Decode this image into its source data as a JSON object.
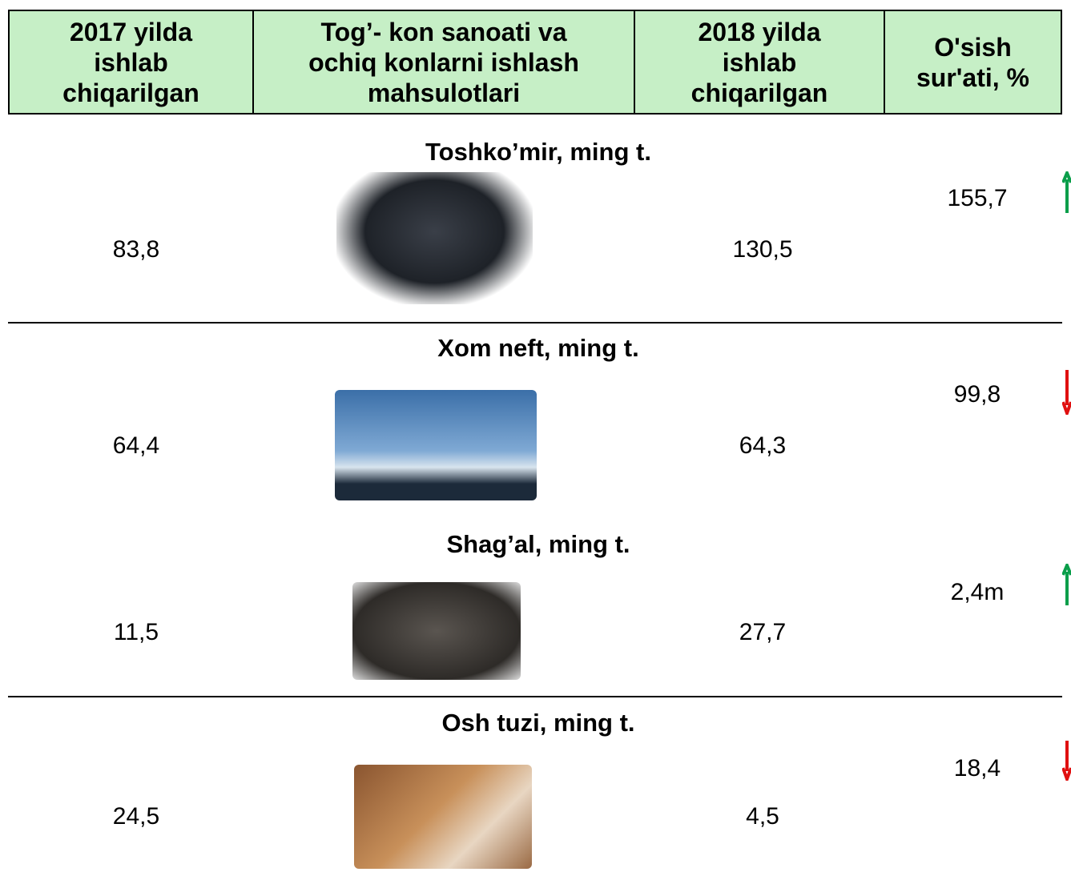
{
  "header": {
    "columns": [
      [
        "2017 yilda",
        "ishlab",
        "chiqarilgan"
      ],
      [
        "Tog’- kon sanoati va",
        "ochiq konlarni ishlash",
        "mahsulotlari"
      ],
      [
        "2018 yilda",
        "ishlab",
        "chiqarilgan"
      ],
      [
        "O'sish",
        "sur'ati, %"
      ]
    ]
  },
  "rows": [
    {
      "title": "Toshko’mir, ming t.",
      "v2017": "83,8",
      "v2018": "130,5",
      "growth": "155,7"
    },
    {
      "title": "Xom neft, ming t.",
      "v2017": "64,4",
      "v2018": "64,3",
      "growth": "99,8"
    },
    {
      "title": "Shag’al, ming t.",
      "v2017": "11,5",
      "v2018": "27,7",
      "growth": "2,4m"
    },
    {
      "title": "Osh tuzi, ming t.",
      "v2017": "24,5",
      "v2018": "4,5",
      "growth": "18,4"
    }
  ]
}
